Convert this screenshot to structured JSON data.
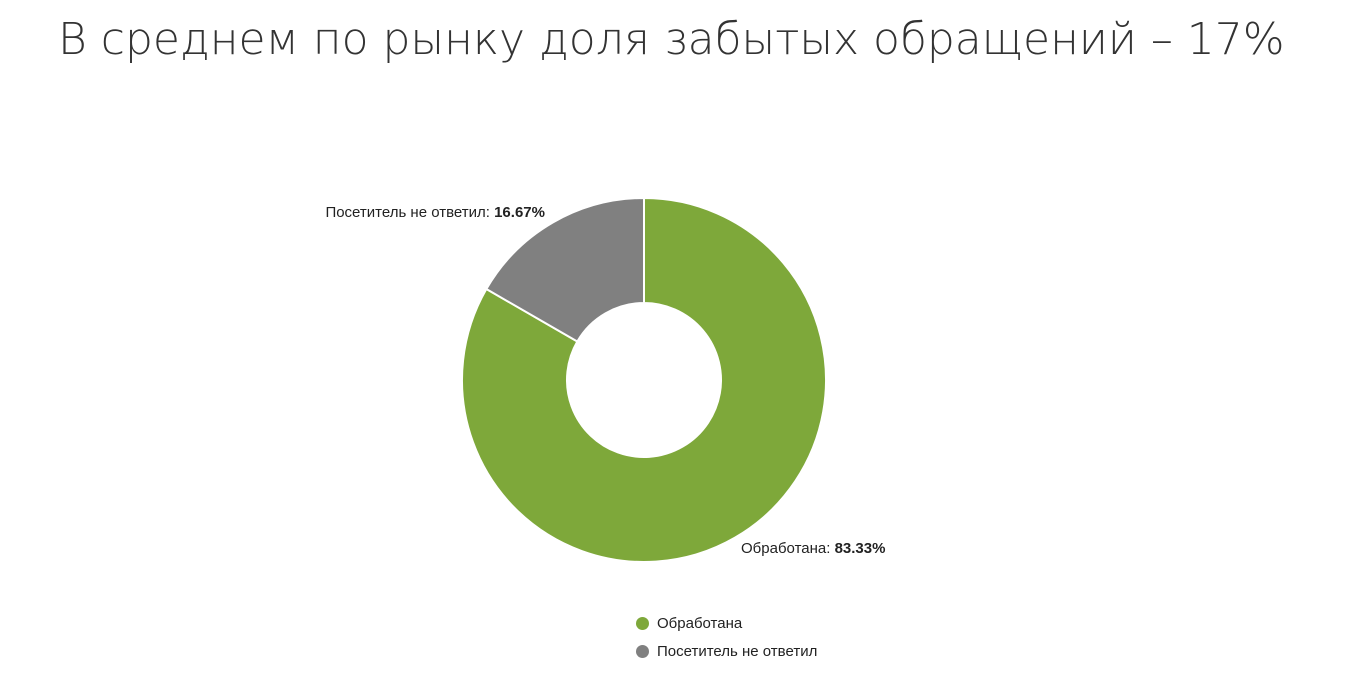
{
  "page": {
    "title": "В среднем по рынку доля забытых обращений – 17%"
  },
  "chart_data": {
    "type": "pie",
    "variant": "donut",
    "title": "",
    "slices": [
      {
        "label": "Обработана",
        "value": 83.33,
        "value_label": "83.33%",
        "color": "#7EA83A"
      },
      {
        "label": "Посетитель не ответил",
        "value": 16.67,
        "value_label": "16.67%",
        "color": "#808080"
      }
    ],
    "legend": {
      "placement": "bottom",
      "items": [
        "Обработана",
        "Посетитель не ответил"
      ]
    }
  }
}
